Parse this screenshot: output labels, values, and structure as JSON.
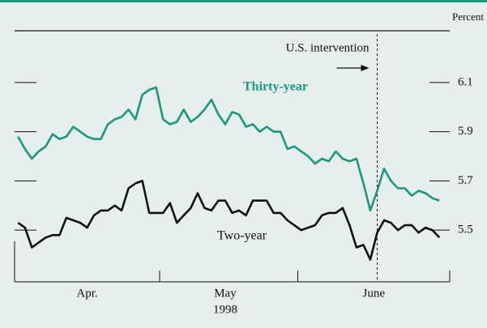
{
  "chart_data": {
    "type": "line",
    "y_axis_label": "Percent",
    "x": [
      0,
      1,
      2,
      3,
      4,
      5,
      6,
      7,
      8,
      9,
      10,
      11,
      12,
      13,
      14,
      15,
      16,
      17,
      18,
      19,
      20,
      21,
      22,
      23,
      24,
      25,
      26,
      27,
      28,
      29,
      30,
      31,
      32,
      33,
      34,
      35,
      36,
      37,
      38,
      39,
      40,
      41,
      42,
      43,
      44,
      45,
      46,
      47,
      48,
      49,
      50,
      51,
      52,
      53,
      54,
      55,
      56,
      57,
      58,
      59,
      60,
      61
    ],
    "xlim": [
      -0.5,
      62.5
    ],
    "xticks": [
      -0.5,
      20.5,
      40.5,
      62.5
    ],
    "month_labels": [
      {
        "value": 10,
        "label": "Apr."
      },
      {
        "value": 30,
        "label": "May"
      },
      {
        "value": 51.5,
        "label": "June"
      }
    ],
    "year_label": "1998",
    "ylim": [
      5.29,
      6.31
    ],
    "yticks": [
      5.5,
      5.7,
      5.9,
      6.1
    ],
    "series": [
      {
        "name": "Thirty-year",
        "color": "#16997c",
        "values": [
          5.88,
          5.83,
          5.79,
          5.82,
          5.84,
          5.89,
          5.87,
          5.88,
          5.92,
          5.9,
          5.88,
          5.87,
          5.87,
          5.93,
          5.95,
          5.96,
          5.99,
          5.95,
          6.05,
          6.07,
          6.08,
          5.95,
          5.93,
          5.94,
          5.99,
          5.94,
          5.96,
          5.99,
          6.03,
          5.97,
          5.93,
          5.98,
          5.97,
          5.92,
          5.93,
          5.9,
          5.92,
          5.9,
          5.9,
          5.83,
          5.84,
          5.82,
          5.8,
          5.77,
          5.79,
          5.78,
          5.82,
          5.79,
          5.78,
          5.79,
          5.69,
          5.58,
          5.66,
          5.75,
          5.7,
          5.67,
          5.67,
          5.64,
          5.66,
          5.65,
          5.63,
          5.62
        ]
      },
      {
        "name": "Two-year",
        "color": "#111111",
        "values": [
          5.53,
          5.51,
          5.43,
          5.45,
          5.47,
          5.48,
          5.48,
          5.55,
          5.54,
          5.53,
          5.51,
          5.56,
          5.58,
          5.58,
          5.6,
          5.58,
          5.67,
          5.69,
          5.7,
          5.57,
          5.57,
          5.57,
          5.61,
          5.53,
          5.56,
          5.59,
          5.65,
          5.59,
          5.58,
          5.62,
          5.62,
          5.57,
          5.58,
          5.56,
          5.62,
          5.62,
          5.62,
          5.57,
          5.57,
          5.54,
          5.52,
          5.5,
          5.51,
          5.52,
          5.56,
          5.57,
          5.57,
          5.59,
          5.52,
          5.43,
          5.44,
          5.38,
          5.49,
          5.54,
          5.53,
          5.5,
          5.52,
          5.52,
          5.49,
          5.51,
          5.5,
          5.47
        ]
      }
    ],
    "annotation": {
      "text": "U.S. intervention",
      "x": 52
    }
  }
}
